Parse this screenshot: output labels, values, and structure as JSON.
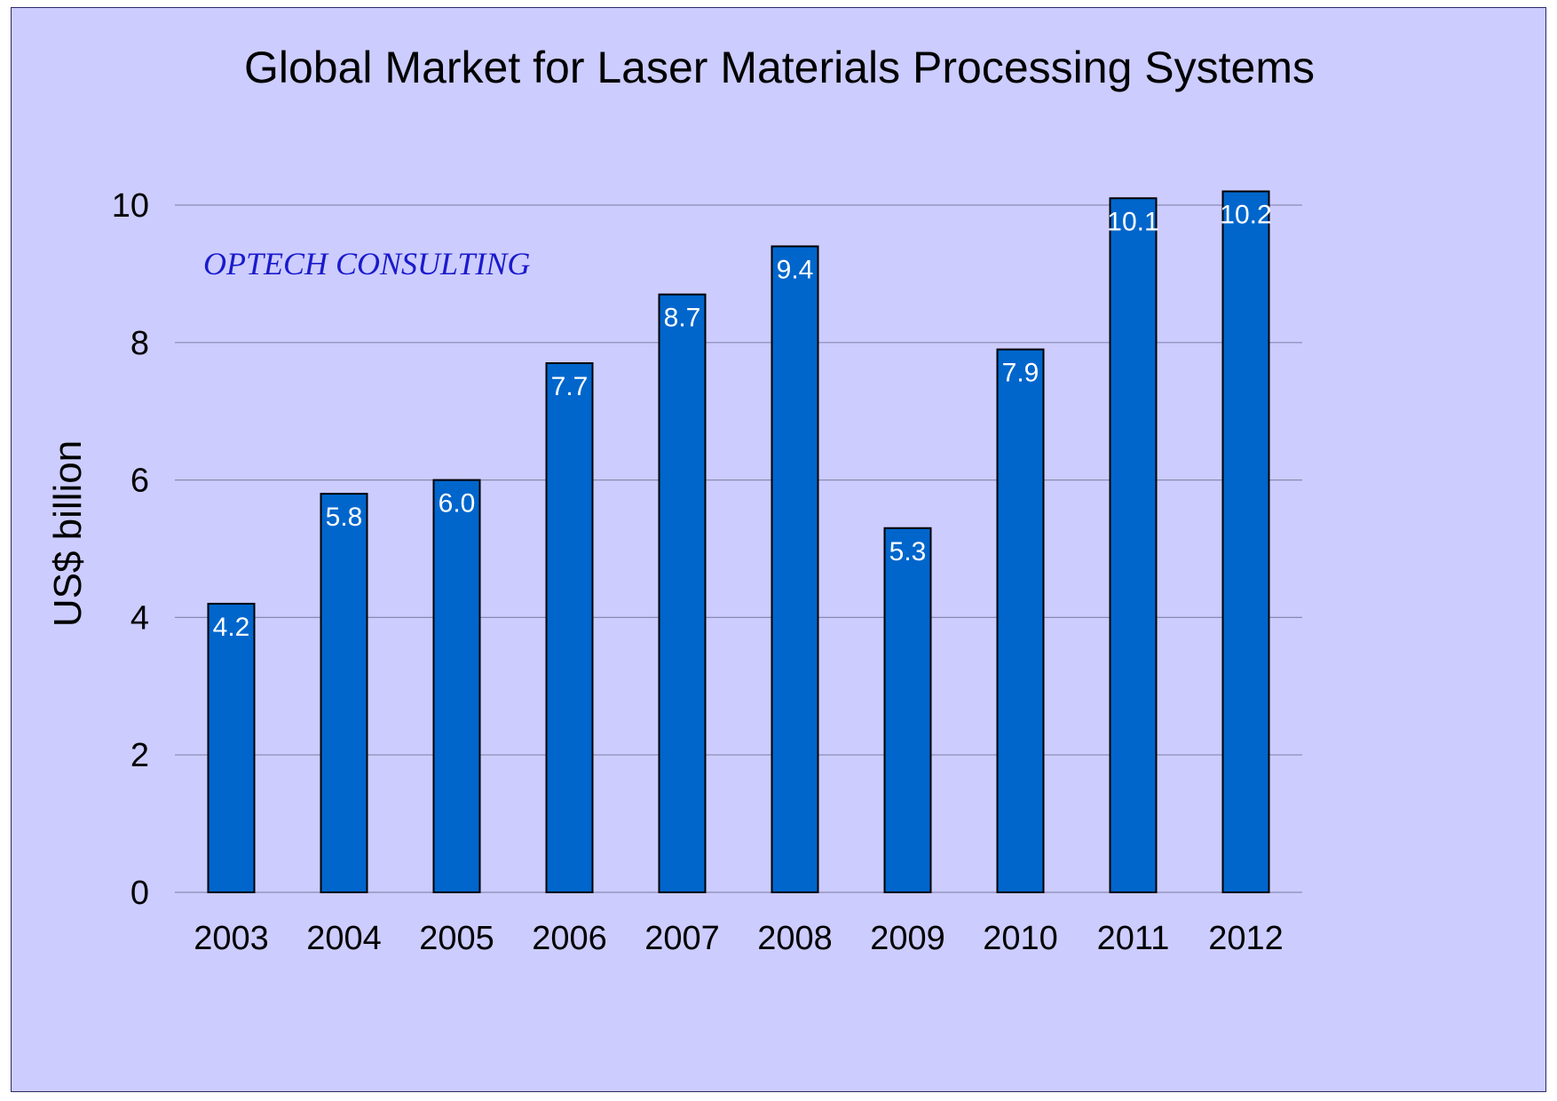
{
  "chart_data": {
    "type": "bar",
    "title": "Global Market for Laser Materials Processing Systems",
    "annotation": "OPTECH CONSULTING",
    "xlabel": "",
    "ylabel": "US$ billion",
    "categories": [
      "2003",
      "2004",
      "2005",
      "2006",
      "2007",
      "2008",
      "2009",
      "2010",
      "2011",
      "2012"
    ],
    "values": [
      4.2,
      5.8,
      6.0,
      7.7,
      8.7,
      9.4,
      5.3,
      7.9,
      10.1,
      10.2
    ],
    "data_labels": [
      "4.2",
      "5.8",
      "6.0",
      "7.7",
      "8.7",
      "9.4",
      "5.3",
      "7.9",
      "10.1",
      "10.2"
    ],
    "ylim": [
      0,
      10
    ],
    "yticks": [
      0,
      2,
      4,
      6,
      8,
      10
    ],
    "grid": true,
    "legend": "none",
    "colors": {
      "background": "#ccccff",
      "bar": "#0066cc",
      "bar_outline": "#000000",
      "gridline": "#8a8ab0",
      "data_label": "#ffffff",
      "annotation": "#1a1acc"
    }
  }
}
